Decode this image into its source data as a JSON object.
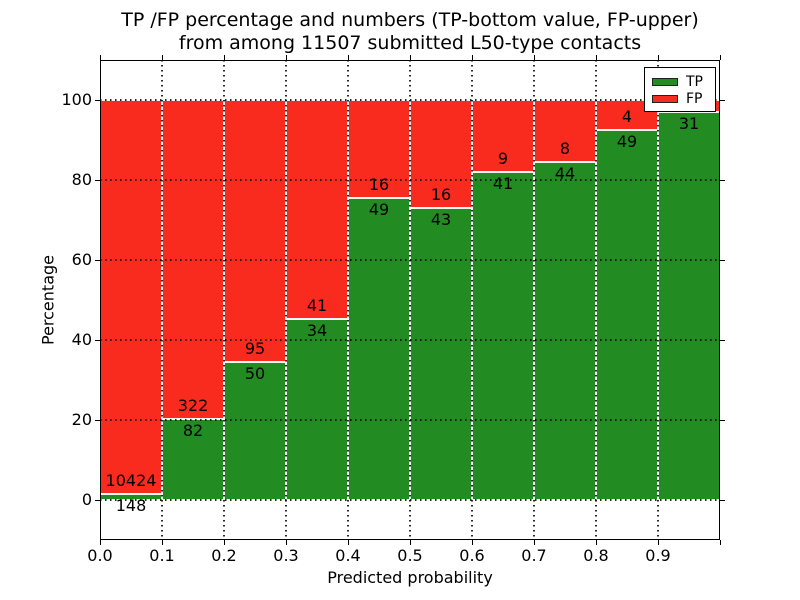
{
  "title": {
    "line1": "TP /FP percentage and numbers (TP-bottom value, FP-upper)",
    "line2": "from among 11507 submitted L50-type contacts"
  },
  "axes": {
    "x_label": "Predicted probability",
    "y_label": "Percentage",
    "x_tick_labels": [
      "0.0",
      "0.1",
      "0.2",
      "0.3",
      "0.4",
      "0.5",
      "0.6",
      "0.7",
      "0.8",
      "0.9"
    ],
    "y_tick_labels": [
      "0",
      "20",
      "40",
      "60",
      "80",
      "100"
    ]
  },
  "legend": {
    "position": "upper-right",
    "tp_label": "TP",
    "fp_label": "FP"
  },
  "colors": {
    "tp": "#228b22",
    "fp": "#f92a1e",
    "grid": "#000000",
    "background": "#ffffff"
  },
  "chart_data": {
    "type": "bar",
    "stacked": true,
    "orientation": "vertical",
    "title": "TP /FP percentage and numbers (TP-bottom value, FP-upper) from among 11507 submitted L50-type contacts",
    "xlabel": "Predicted probability",
    "ylabel": "Percentage",
    "xlim": [
      0.0,
      1.0
    ],
    "ylim": [
      -10,
      110
    ],
    "grid": "dotted",
    "bar_width": 0.1,
    "series_names": [
      "TP",
      "FP"
    ],
    "bins": [
      {
        "x_range": [
          0.0,
          0.1
        ],
        "tp": 148,
        "fp": 10424,
        "tp_pct": 1.4,
        "fp_pct": 98.6,
        "tp_label": "148",
        "fp_label": "10424"
      },
      {
        "x_range": [
          0.1,
          0.2
        ],
        "tp": 82,
        "fp": 322,
        "tp_pct": 20.3,
        "fp_pct": 79.7,
        "tp_label": "82",
        "fp_label": "322"
      },
      {
        "x_range": [
          0.2,
          0.3
        ],
        "tp": 50,
        "fp": 95,
        "tp_pct": 34.5,
        "fp_pct": 65.5,
        "tp_label": "50",
        "fp_label": "95"
      },
      {
        "x_range": [
          0.3,
          0.4
        ],
        "tp": 34,
        "fp": 41,
        "tp_pct": 45.3,
        "fp_pct": 54.7,
        "tp_label": "34",
        "fp_label": "41"
      },
      {
        "x_range": [
          0.4,
          0.5
        ],
        "tp": 49,
        "fp": 16,
        "tp_pct": 75.4,
        "fp_pct": 24.6,
        "tp_label": "49",
        "fp_label": "16"
      },
      {
        "x_range": [
          0.5,
          0.6
        ],
        "tp": 43,
        "fp": 16,
        "tp_pct": 72.9,
        "fp_pct": 27.1,
        "tp_label": "43",
        "fp_label": "16"
      },
      {
        "x_range": [
          0.6,
          0.7
        ],
        "tp": 41,
        "fp": 9,
        "tp_pct": 82.0,
        "fp_pct": 18.0,
        "tp_label": "41",
        "fp_label": "9"
      },
      {
        "x_range": [
          0.7,
          0.8
        ],
        "tp": 44,
        "fp": 8,
        "tp_pct": 84.6,
        "fp_pct": 15.4,
        "tp_label": "44",
        "fp_label": "8"
      },
      {
        "x_range": [
          0.8,
          0.9
        ],
        "tp": 49,
        "fp": 4,
        "tp_pct": 92.5,
        "fp_pct": 7.5,
        "tp_label": "49",
        "fp_label": "4"
      },
      {
        "x_range": [
          0.9,
          1.0
        ],
        "tp": 31,
        "fp": null,
        "tp_pct": 96.9,
        "fp_pct": 3.1,
        "tp_label": "31",
        "fp_label": ""
      }
    ],
    "notes": "Each bar stacks TP (green, bottom) and FP (red, upper) to 100%. FP count of last bin hidden behind legend."
  }
}
